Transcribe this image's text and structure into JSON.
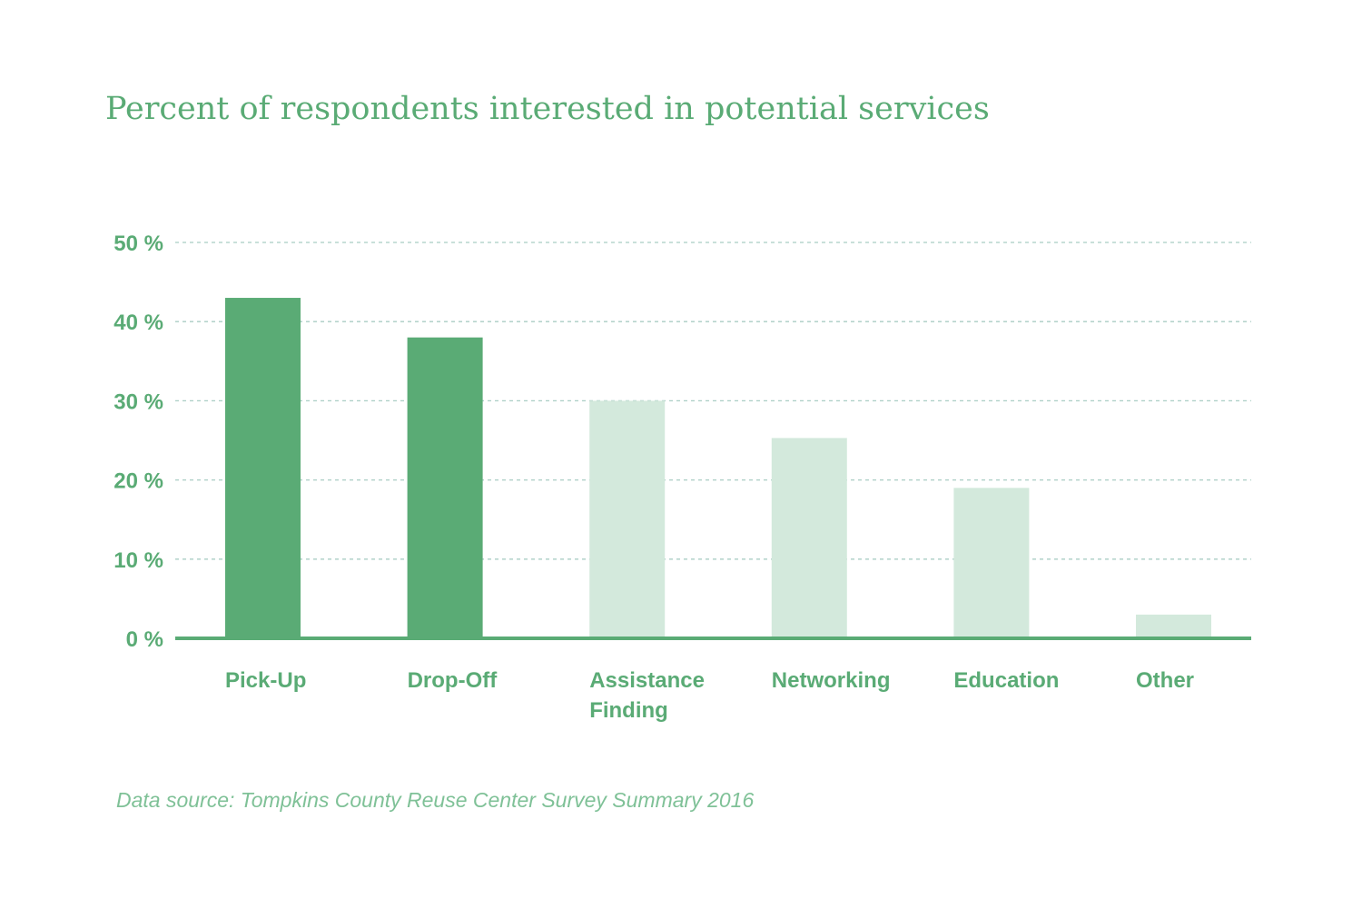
{
  "colors": {
    "accent": "#5aab75",
    "highlight_bar": "#5aab75",
    "muted_bar": "#d3e9dc",
    "grid": "#a9cdc4",
    "source_text": "#7fc197"
  },
  "chart_data": {
    "type": "bar",
    "title": "Percent of respondents interested in potential services",
    "categories": [
      "Pick-Up",
      "Drop-Off",
      "Assistance Finding",
      "Networking",
      "Education",
      "Other"
    ],
    "category_lines": [
      [
        "Pick-Up"
      ],
      [
        "Drop-Off"
      ],
      [
        "Assistance",
        "Finding"
      ],
      [
        "Networking"
      ],
      [
        "Education"
      ],
      [
        "Other"
      ]
    ],
    "values": [
      43,
      38,
      30,
      25.3,
      19,
      3
    ],
    "highlighted": [
      true,
      true,
      false,
      false,
      false,
      false
    ],
    "ylim": [
      0,
      50
    ],
    "yticks": [
      0,
      10,
      20,
      30,
      40,
      50
    ],
    "ytick_labels": [
      "0 %",
      "10 %",
      "20 %",
      "30 %",
      "40 %",
      "50 %"
    ],
    "xlabel": "",
    "ylabel": "",
    "grid": true
  },
  "source": "Data source: Tompkins County Reuse Center Survey Summary 2016"
}
